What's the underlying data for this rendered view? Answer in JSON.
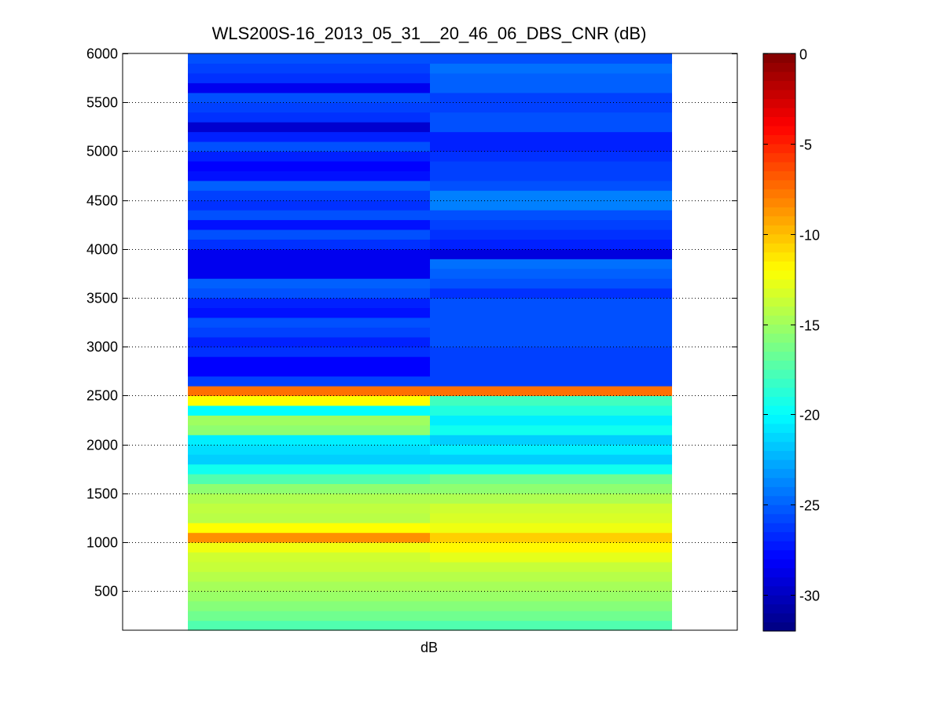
{
  "chart_data": {
    "type": "heatmap",
    "title": "WLS200S-16_2013_05_31__20_46_06_DBS_CNR (dB)",
    "xlabel": "dB",
    "ylabel": "",
    "ylim": [
      100,
      6000
    ],
    "yticks": [
      500,
      1000,
      1500,
      2000,
      2500,
      3000,
      3500,
      4000,
      4500,
      5000,
      5500,
      6000
    ],
    "grid": "dotted horizontal",
    "colormap": "jet",
    "colorbar": {
      "clim": [
        -32,
        0
      ],
      "ticks": [
        0,
        -5,
        -10,
        -15,
        -20,
        -25,
        -30
      ]
    },
    "columns": 2,
    "row_centers": [
      150,
      250,
      350,
      450,
      550,
      650,
      750,
      850,
      950,
      1050,
      1150,
      1250,
      1350,
      1450,
      1550,
      1650,
      1750,
      1850,
      1950,
      2050,
      2150,
      2250,
      2350,
      2450,
      2550,
      2650,
      2750,
      2850,
      2950,
      3050,
      3150,
      3250,
      3350,
      3450,
      3550,
      3650,
      3750,
      3850,
      3950,
      4050,
      4150,
      4250,
      4350,
      4450,
      4550,
      4650,
      4750,
      4850,
      4950,
      5050,
      5150,
      5250,
      5350,
      5450,
      5550,
      5650,
      5750,
      5850,
      5950
    ],
    "values_col1": [
      -17.5,
      -16.5,
      -15.8,
      -15.2,
      -14.8,
      -14.3,
      -13.8,
      -13.5,
      -12.5,
      -8.5,
      -12.0,
      -14.2,
      -14.0,
      -14.5,
      -15.5,
      -17.5,
      -19.5,
      -21.5,
      -21.0,
      -20.5,
      -15.5,
      -15.0,
      -20.0,
      -12.0,
      -7.5,
      -26.0,
      -28.0,
      -28.0,
      -26.5,
      -27.0,
      -26.0,
      -25.5,
      -27.5,
      -27.0,
      -25.5,
      -25.0,
      -28.5,
      -28.5,
      -28.5,
      -26.5,
      -25.5,
      -27.5,
      -25.5,
      -26.5,
      -26.0,
      -25.0,
      -27.5,
      -28.0,
      -27.0,
      -25.5,
      -27.0,
      -29.5,
      -26.5,
      -26.0,
      -25.5,
      -28.5,
      -26.5,
      -26.0,
      -25.5
    ],
    "values_col2": [
      -17.5,
      -16.5,
      -15.8,
      -15.2,
      -14.8,
      -14.3,
      -13.8,
      -12.8,
      -11.8,
      -10.5,
      -12.5,
      -13.2,
      -13.5,
      -14.5,
      -15.5,
      -16.5,
      -19.5,
      -21.5,
      -20.5,
      -21.5,
      -19.5,
      -20.5,
      -19.0,
      -18.0,
      -7.5,
      -26.0,
      -26.0,
      -26.0,
      -26.0,
      -25.5,
      -25.5,
      -25.5,
      -25.5,
      -25.5,
      -26.5,
      -25.5,
      -25.0,
      -24.5,
      -29.0,
      -27.0,
      -26.5,
      -26.0,
      -25.5,
      -24.0,
      -24.0,
      -25.5,
      -26.0,
      -26.0,
      -26.5,
      -27.0,
      -27.0,
      -25.5,
      -25.5,
      -26.0,
      -26.0,
      -25.0,
      -25.0,
      -24.5,
      -25.5
    ]
  }
}
